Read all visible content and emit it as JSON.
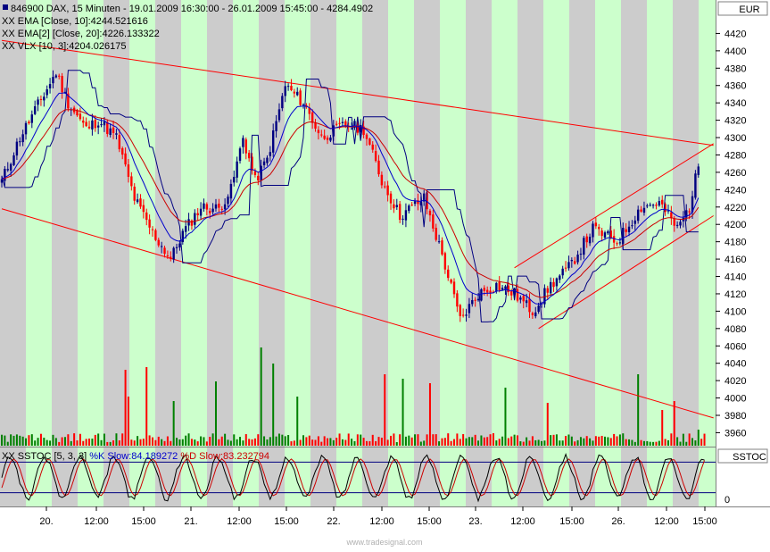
{
  "header": {
    "title": "846900  DAX, 15 Minuten - 19.01.2009 16:30:00 - 26.01.2009 15:45:00 - 4284.4902",
    "legend": [
      {
        "text": "XX EMA [Close, 10]:4244.521616",
        "color": "#0000cc"
      },
      {
        "text": "XX EMA[2] [Close, 20]:4226.133322",
        "color": "#cc0000"
      },
      {
        "text": "XX VLX [10, 3]:4204.026175",
        "color": "#000000"
      }
    ],
    "currency": "EUR"
  },
  "stoch": {
    "label": "XX SSTOC [5, 3, 3]",
    "k_label": " %K Slow:84.189272",
    "d_label": " %D Slow:83.232794",
    "name": "SSTOC",
    "upper_level": 80,
    "lower_level": 20,
    "axis_label": "0"
  },
  "watermark": "www.tradesignal.com",
  "colors": {
    "session_green": "#ccffcc",
    "session_gray": "#cccccc",
    "ema10": "#0000cc",
    "ema20": "#cc0000",
    "vlx": "#000080",
    "trend": "#ff0000",
    "candle_up": "#000080",
    "vol_up": "#008000",
    "vol_down": "#ff0000"
  },
  "chart_data": {
    "type": "candlestick",
    "ylim": [
      3945,
      4440
    ],
    "y_ticks": [
      3960,
      3980,
      4000,
      4020,
      4040,
      4060,
      4080,
      4100,
      4120,
      4140,
      4160,
      4180,
      4200,
      4220,
      4240,
      4260,
      4280,
      4300,
      4320,
      4340,
      4360,
      4380,
      4400,
      4420
    ],
    "x_labels": [
      "20.",
      "12:00",
      "15:00",
      "21.",
      "12:00",
      "15:00",
      "22.",
      "12:00",
      "15:00",
      "23.",
      "12:00",
      "15:00",
      "26.",
      "12:00",
      "15:00"
    ],
    "close_anchors": [
      [
        0,
        4250
      ],
      [
        6,
        4300
      ],
      [
        14,
        4350
      ],
      [
        18,
        4375
      ],
      [
        22,
        4340
      ],
      [
        28,
        4310
      ],
      [
        32,
        4320
      ],
      [
        38,
        4300
      ],
      [
        44,
        4230
      ],
      [
        50,
        4190
      ],
      [
        56,
        4160
      ],
      [
        60,
        4190
      ],
      [
        66,
        4220
      ],
      [
        72,
        4218
      ],
      [
        76,
        4240
      ],
      [
        80,
        4300
      ],
      [
        84,
        4250
      ],
      [
        88,
        4275
      ],
      [
        94,
        4360
      ],
      [
        100,
        4340
      ],
      [
        106,
        4300
      ],
      [
        114,
        4315
      ],
      [
        120,
        4310
      ],
      [
        126,
        4250
      ],
      [
        132,
        4210
      ],
      [
        140,
        4230
      ],
      [
        146,
        4165
      ],
      [
        152,
        4090
      ],
      [
        158,
        4120
      ],
      [
        164,
        4130
      ],
      [
        170,
        4120
      ],
      [
        176,
        4100
      ],
      [
        182,
        4130
      ],
      [
        188,
        4150
      ],
      [
        196,
        4195
      ],
      [
        204,
        4180
      ],
      [
        212,
        4220
      ],
      [
        218,
        4225
      ],
      [
        224,
        4195
      ],
      [
        228,
        4220
      ],
      [
        232,
        4284
      ]
    ],
    "last_close": 4284.49,
    "ema10_last": 4244.52,
    "ema20_last": 4226.13,
    "vlx_last": 4204.03,
    "volume_spikes": {
      "41": 85,
      "42": 55,
      "48": 88,
      "57": 50,
      "71": 72,
      "86": 110,
      "90": 92,
      "98": 55,
      "127": 80,
      "133": 75,
      "142": 70,
      "167": 65,
      "181": 48,
      "211": 80,
      "219": 40,
      "223": 50,
      "231": 18
    },
    "trendlines": [
      {
        "from": [
          "19.01. 16:30",
          4412
        ],
        "to": [
          "26.01. 15:45",
          4291
        ]
      },
      {
        "from": [
          "19.01. 16:30",
          4218
        ],
        "to": [
          "26.01. 15:45",
          3977
        ]
      },
      {
        "from": [
          "23.01. 12:00",
          4150
        ],
        "to": [
          "26.01. 15:45",
          4293
        ]
      },
      {
        "from": [
          "23.01. 14:00",
          4080
        ],
        "to": [
          "26.01. 15:45",
          4210
        ]
      }
    ],
    "stoch_k_last": 84.19,
    "stoch_d_last": 83.23
  }
}
